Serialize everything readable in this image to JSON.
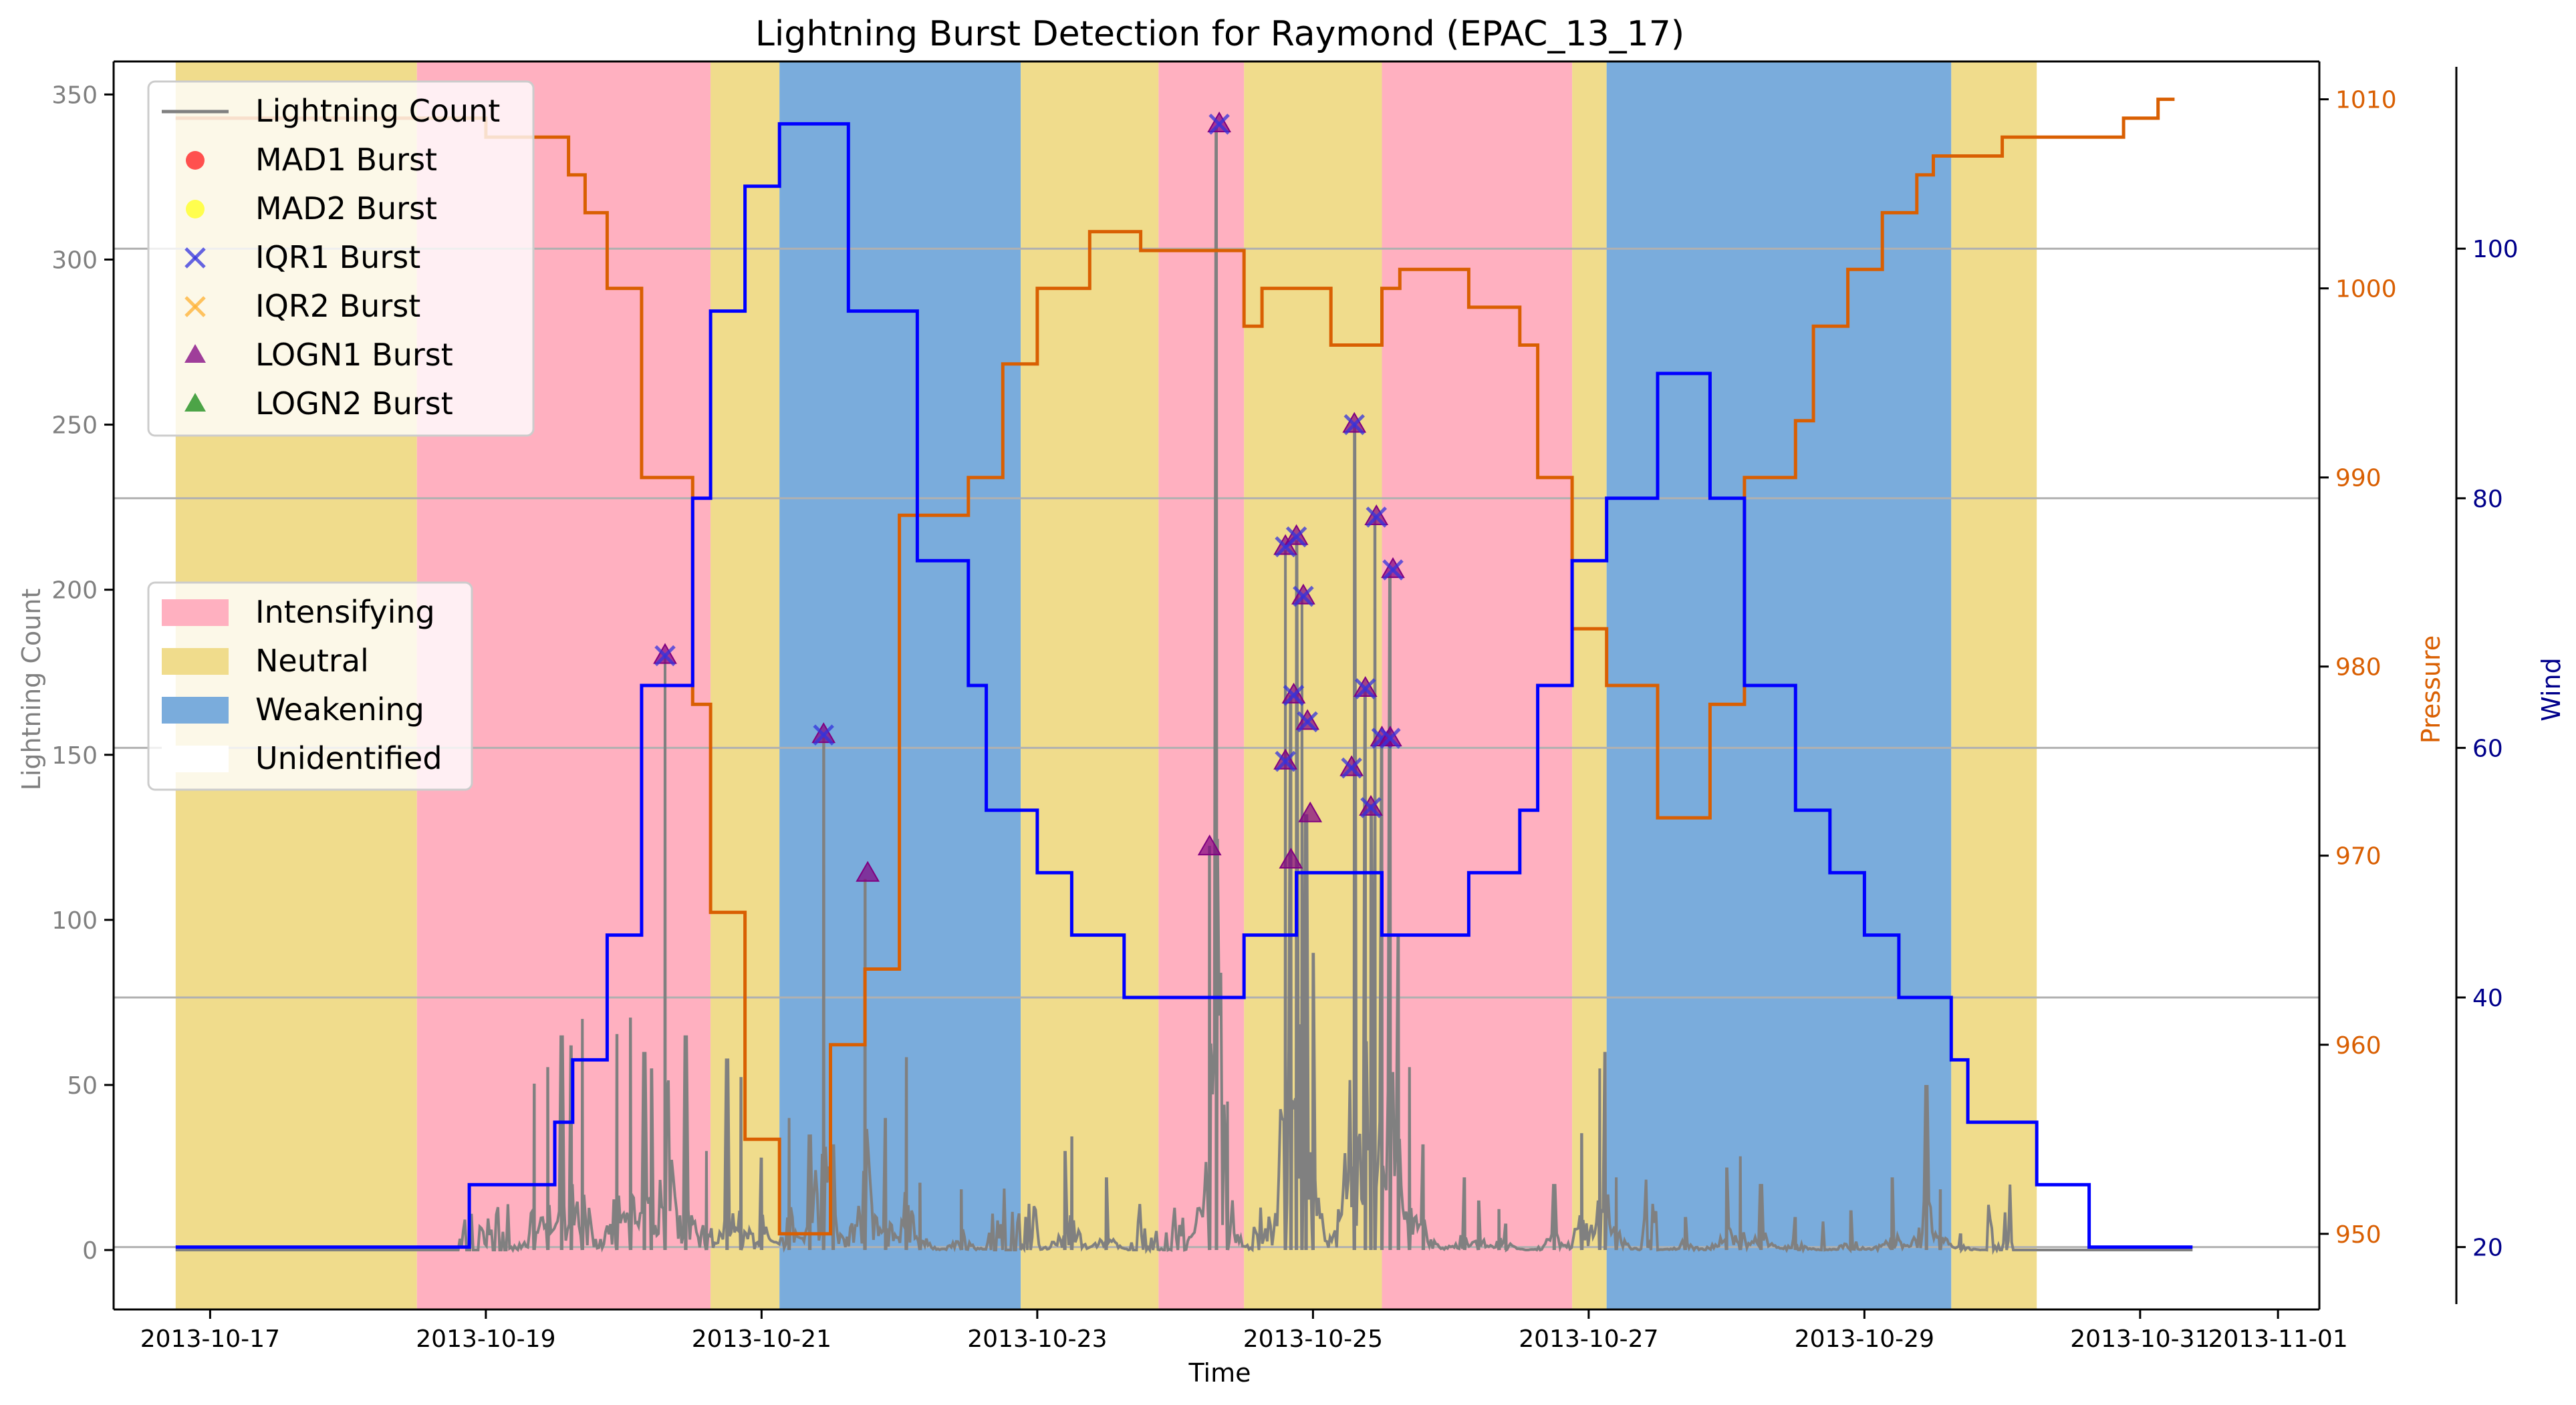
{
  "chart_data": {
    "type": "line",
    "title": "Lightning Burst Detection for Raymond (EPAC_13_17)",
    "xlabel": "Time",
    "ylabel_left": "Lightning Count",
    "ylabel_pressure": "Pressure",
    "ylabel_wind": "Wind",
    "x_ticks": [
      "2013-10-17",
      "2013-10-19",
      "2013-10-21",
      "2013-10-23",
      "2013-10-25",
      "2013-10-27",
      "2013-10-29",
      "2013-10-31",
      "2013-11-01"
    ],
    "x_tick_day": [
      0,
      2,
      4,
      6,
      8,
      10,
      12,
      14,
      15
    ],
    "x_range_day": [
      -0.7,
      15.3
    ],
    "x_origin": "2013-10-17 00:00",
    "left_axis": {
      "ylim": [
        -18,
        360
      ],
      "ticks": [
        0,
        50,
        100,
        150,
        200,
        250,
        300,
        350
      ]
    },
    "pressure_axis": {
      "ylim": [
        946,
        1012
      ],
      "ticks": [
        950,
        960,
        970,
        980,
        990,
        1000,
        1010
      ]
    },
    "wind_axis": {
      "ylim": [
        15,
        115
      ],
      "ticks": [
        20,
        40,
        60,
        80,
        100
      ]
    },
    "grid": "horizontal lines at wind ticks",
    "phases": [
      {
        "start": -0.25,
        "end": 1.5,
        "label": "Neutral"
      },
      {
        "start": 1.5,
        "end": 3.63,
        "label": "Intensifying"
      },
      {
        "start": 3.63,
        "end": 4.13,
        "label": "Neutral"
      },
      {
        "start": 4.13,
        "end": 5.88,
        "label": "Weakening"
      },
      {
        "start": 5.88,
        "end": 6.88,
        "label": "Neutral"
      },
      {
        "start": 6.88,
        "end": 7.5,
        "label": "Intensifying"
      },
      {
        "start": 7.5,
        "end": 8.5,
        "label": "Neutral"
      },
      {
        "start": 8.5,
        "end": 9.88,
        "label": "Intensifying"
      },
      {
        "start": 9.88,
        "end": 10.13,
        "label": "Neutral"
      },
      {
        "start": 10.13,
        "end": 12.63,
        "label": "Weakening"
      },
      {
        "start": 12.63,
        "end": 13.25,
        "label": "Neutral"
      }
    ],
    "phase_colors": {
      "Intensifying": "#ffb0c0",
      "Neutral": "#f0dc8c",
      "Weakening": "#7aacdc"
    },
    "phase_legend": [
      "Intensifying",
      "Neutral",
      "Weakening",
      "Unidentified"
    ],
    "series_legend": [
      "Lightning Count",
      "MAD1 Burst",
      "MAD2 Burst",
      "IQR1 Burst",
      "IQR2 Burst",
      "LOGN1 Burst",
      "LOGN2 Burst"
    ],
    "pressure": {
      "color": "#d95f02",
      "points": [
        [
          -0.25,
          1009
        ],
        [
          1.5,
          1009
        ],
        [
          1.5,
          1009
        ],
        [
          2.0,
          1009
        ],
        [
          2.0,
          1008
        ],
        [
          2.6,
          1008
        ],
        [
          2.6,
          1006
        ],
        [
          2.72,
          1006
        ],
        [
          2.72,
          1004
        ],
        [
          2.88,
          1004
        ],
        [
          2.88,
          1000
        ],
        [
          3.13,
          1000
        ],
        [
          3.13,
          990
        ],
        [
          3.5,
          990
        ],
        [
          3.5,
          978
        ],
        [
          3.63,
          978
        ],
        [
          3.63,
          967
        ],
        [
          3.88,
          967
        ],
        [
          3.88,
          955
        ],
        [
          4.13,
          955
        ],
        [
          4.13,
          950
        ],
        [
          4.5,
          950
        ],
        [
          4.5,
          960
        ],
        [
          4.75,
          960
        ],
        [
          4.75,
          964
        ],
        [
          5.0,
          964
        ],
        [
          5.0,
          988
        ],
        [
          5.5,
          988
        ],
        [
          5.5,
          990
        ],
        [
          5.75,
          990
        ],
        [
          5.75,
          996
        ],
        [
          6.0,
          996
        ],
        [
          6.0,
          1000
        ],
        [
          6.38,
          1000
        ],
        [
          6.38,
          1003
        ],
        [
          6.75,
          1003
        ],
        [
          6.75,
          1002
        ],
        [
          7.5,
          1002
        ],
        [
          7.5,
          998
        ],
        [
          7.63,
          998
        ],
        [
          7.63,
          1000
        ],
        [
          8.13,
          1000
        ],
        [
          8.13,
          997
        ],
        [
          8.5,
          997
        ],
        [
          8.5,
          1000
        ],
        [
          8.63,
          1000
        ],
        [
          8.63,
          1001
        ],
        [
          9.13,
          1001
        ],
        [
          9.13,
          999
        ],
        [
          9.5,
          999
        ],
        [
          9.5,
          997
        ],
        [
          9.63,
          997
        ],
        [
          9.63,
          990
        ],
        [
          9.88,
          990
        ],
        [
          9.88,
          982
        ],
        [
          10.13,
          982
        ],
        [
          10.13,
          979
        ],
        [
          10.5,
          979
        ],
        [
          10.5,
          972
        ],
        [
          10.88,
          972
        ],
        [
          10.88,
          978
        ],
        [
          11.13,
          978
        ],
        [
          11.13,
          990
        ],
        [
          11.5,
          990
        ],
        [
          11.5,
          993
        ],
        [
          11.63,
          993
        ],
        [
          11.63,
          998
        ],
        [
          11.88,
          998
        ],
        [
          11.88,
          1001
        ],
        [
          12.13,
          1001
        ],
        [
          12.13,
          1004
        ],
        [
          12.38,
          1004
        ],
        [
          12.38,
          1006
        ],
        [
          12.5,
          1006
        ],
        [
          12.5,
          1007
        ],
        [
          13.0,
          1007
        ],
        [
          13.0,
          1008
        ],
        [
          13.88,
          1008
        ],
        [
          13.88,
          1009
        ],
        [
          14.13,
          1009
        ],
        [
          14.13,
          1010
        ],
        [
          14.25,
          1010
        ]
      ]
    },
    "wind": {
      "color": "#0000ff",
      "points": [
        [
          -0.25,
          20
        ],
        [
          1.88,
          20
        ],
        [
          1.88,
          25
        ],
        [
          2.5,
          25
        ],
        [
          2.5,
          30
        ],
        [
          2.63,
          30
        ],
        [
          2.63,
          35
        ],
        [
          2.88,
          35
        ],
        [
          2.88,
          45
        ],
        [
          3.13,
          45
        ],
        [
          3.13,
          65
        ],
        [
          3.5,
          65
        ],
        [
          3.5,
          80
        ],
        [
          3.63,
          80
        ],
        [
          3.63,
          95
        ],
        [
          3.88,
          95
        ],
        [
          3.88,
          105
        ],
        [
          4.13,
          105
        ],
        [
          4.13,
          110
        ],
        [
          4.63,
          110
        ],
        [
          4.63,
          95
        ],
        [
          5.13,
          95
        ],
        [
          5.13,
          75
        ],
        [
          5.5,
          75
        ],
        [
          5.5,
          65
        ],
        [
          5.63,
          65
        ],
        [
          5.63,
          55
        ],
        [
          6.0,
          55
        ],
        [
          6.0,
          50
        ],
        [
          6.25,
          50
        ],
        [
          6.25,
          45
        ],
        [
          6.63,
          45
        ],
        [
          6.63,
          40
        ],
        [
          7.5,
          40
        ],
        [
          7.5,
          45
        ],
        [
          7.88,
          45
        ],
        [
          7.88,
          50
        ],
        [
          8.5,
          50
        ],
        [
          8.5,
          45
        ],
        [
          9.13,
          45
        ],
        [
          9.13,
          50
        ],
        [
          9.5,
          50
        ],
        [
          9.5,
          55
        ],
        [
          9.63,
          55
        ],
        [
          9.63,
          65
        ],
        [
          9.88,
          65
        ],
        [
          9.88,
          75
        ],
        [
          10.13,
          75
        ],
        [
          10.13,
          80
        ],
        [
          10.5,
          80
        ],
        [
          10.5,
          90
        ],
        [
          10.88,
          90
        ],
        [
          10.88,
          80
        ],
        [
          11.13,
          80
        ],
        [
          11.13,
          65
        ],
        [
          11.5,
          65
        ],
        [
          11.5,
          55
        ],
        [
          11.75,
          55
        ],
        [
          11.75,
          50
        ],
        [
          12.0,
          50
        ],
        [
          12.0,
          45
        ],
        [
          12.25,
          45
        ],
        [
          12.25,
          40
        ],
        [
          12.63,
          40
        ],
        [
          12.63,
          35
        ],
        [
          12.75,
          35
        ],
        [
          12.75,
          30
        ],
        [
          13.25,
          30
        ],
        [
          13.25,
          25
        ],
        [
          13.63,
          25
        ],
        [
          13.63,
          20
        ],
        [
          14.38,
          20
        ]
      ]
    },
    "lightning": {
      "color": "#808080",
      "range_day": [
        1.8,
        13.1
      ],
      "spikes": [
        [
          2.35,
          50
        ],
        [
          2.45,
          55
        ],
        [
          2.55,
          65
        ],
        [
          2.62,
          62
        ],
        [
          2.7,
          70
        ],
        [
          2.95,
          65
        ],
        [
          3.05,
          70
        ],
        [
          3.15,
          60
        ],
        [
          3.2,
          55
        ],
        [
          3.3,
          180
        ],
        [
          3.45,
          65
        ],
        [
          3.6,
          30
        ],
        [
          3.75,
          58
        ],
        [
          3.85,
          52
        ],
        [
          4.0,
          28
        ],
        [
          4.2,
          40
        ],
        [
          4.35,
          35
        ],
        [
          4.45,
          155
        ],
        [
          4.52,
          32
        ],
        [
          4.75,
          112
        ],
        [
          4.9,
          40
        ],
        [
          5.05,
          58
        ],
        [
          5.15,
          20
        ],
        [
          5.45,
          18
        ],
        [
          6.2,
          30
        ],
        [
          6.25,
          34
        ],
        [
          6.5,
          22
        ],
        [
          7.25,
          122
        ],
        [
          7.3,
          340
        ],
        [
          7.38,
          45
        ],
        [
          7.8,
          212
        ],
        [
          7.84,
          168
        ],
        [
          7.88,
          215
        ],
        [
          7.92,
          198
        ],
        [
          7.95,
          132
        ],
        [
          8.0,
          90
        ],
        [
          8.3,
          250
        ],
        [
          8.38,
          170
        ],
        [
          8.42,
          135
        ],
        [
          8.45,
          222
        ],
        [
          8.5,
          155
        ],
        [
          8.56,
          205
        ],
        [
          8.62,
          95
        ],
        [
          8.7,
          55
        ],
        [
          8.8,
          32
        ],
        [
          9.1,
          22
        ],
        [
          9.2,
          15
        ],
        [
          9.4,
          8
        ],
        [
          9.35,
          12
        ],
        [
          9.75,
          20
        ],
        [
          9.95,
          35
        ],
        [
          10.08,
          55
        ],
        [
          10.12,
          60
        ],
        [
          10.2,
          22
        ],
        [
          10.7,
          10
        ],
        [
          11.0,
          25
        ],
        [
          11.1,
          28
        ],
        [
          11.25,
          20
        ],
        [
          11.5,
          10
        ],
        [
          11.9,
          12
        ],
        [
          12.2,
          22
        ],
        [
          12.45,
          50
        ],
        [
          12.55,
          18
        ],
        [
          12.7,
          5
        ]
      ]
    },
    "bursts": [
      {
        "day": 3.3,
        "count": 180,
        "types": [
          "IQR1",
          "LOGN1"
        ]
      },
      {
        "day": 4.45,
        "count": 156,
        "types": [
          "IQR1",
          "LOGN1"
        ]
      },
      {
        "day": 4.77,
        "count": 114,
        "types": [
          "LOGN1"
        ]
      },
      {
        "day": 7.25,
        "count": 122,
        "types": [
          "LOGN1"
        ]
      },
      {
        "day": 7.32,
        "count": 341,
        "types": [
          "IQR1",
          "LOGN1"
        ]
      },
      {
        "day": 7.8,
        "count": 213,
        "types": [
          "IQR1",
          "LOGN1"
        ]
      },
      {
        "day": 7.86,
        "count": 168,
        "types": [
          "IQR1",
          "LOGN1"
        ]
      },
      {
        "day": 7.8,
        "count": 148,
        "types": [
          "IQR1",
          "LOGN1"
        ]
      },
      {
        "day": 7.88,
        "count": 216,
        "types": [
          "IQR1",
          "LOGN1"
        ]
      },
      {
        "day": 7.93,
        "count": 198,
        "types": [
          "IQR1",
          "LOGN1"
        ]
      },
      {
        "day": 7.96,
        "count": 160,
        "types": [
          "IQR1",
          "LOGN1"
        ]
      },
      {
        "day": 7.98,
        "count": 132,
        "types": [
          "LOGN1"
        ]
      },
      {
        "day": 7.84,
        "count": 118,
        "types": [
          "LOGN1"
        ]
      },
      {
        "day": 8.38,
        "count": 170,
        "types": [
          "IQR1",
          "LOGN1"
        ]
      },
      {
        "day": 8.3,
        "count": 250,
        "types": [
          "IQR1",
          "LOGN1"
        ]
      },
      {
        "day": 8.28,
        "count": 146,
        "types": [
          "IQR1",
          "LOGN1"
        ]
      },
      {
        "day": 8.42,
        "count": 134,
        "types": [
          "IQR1",
          "LOGN1"
        ]
      },
      {
        "day": 8.46,
        "count": 222,
        "types": [
          "IQR1",
          "LOGN1"
        ]
      },
      {
        "day": 8.5,
        "count": 155,
        "types": [
          "IQR1",
          "LOGN1"
        ]
      },
      {
        "day": 8.56,
        "count": 155,
        "types": [
          "IQR1",
          "LOGN1"
        ]
      },
      {
        "day": 8.58,
        "count": 206,
        "types": [
          "IQR1",
          "LOGN1"
        ]
      }
    ]
  }
}
